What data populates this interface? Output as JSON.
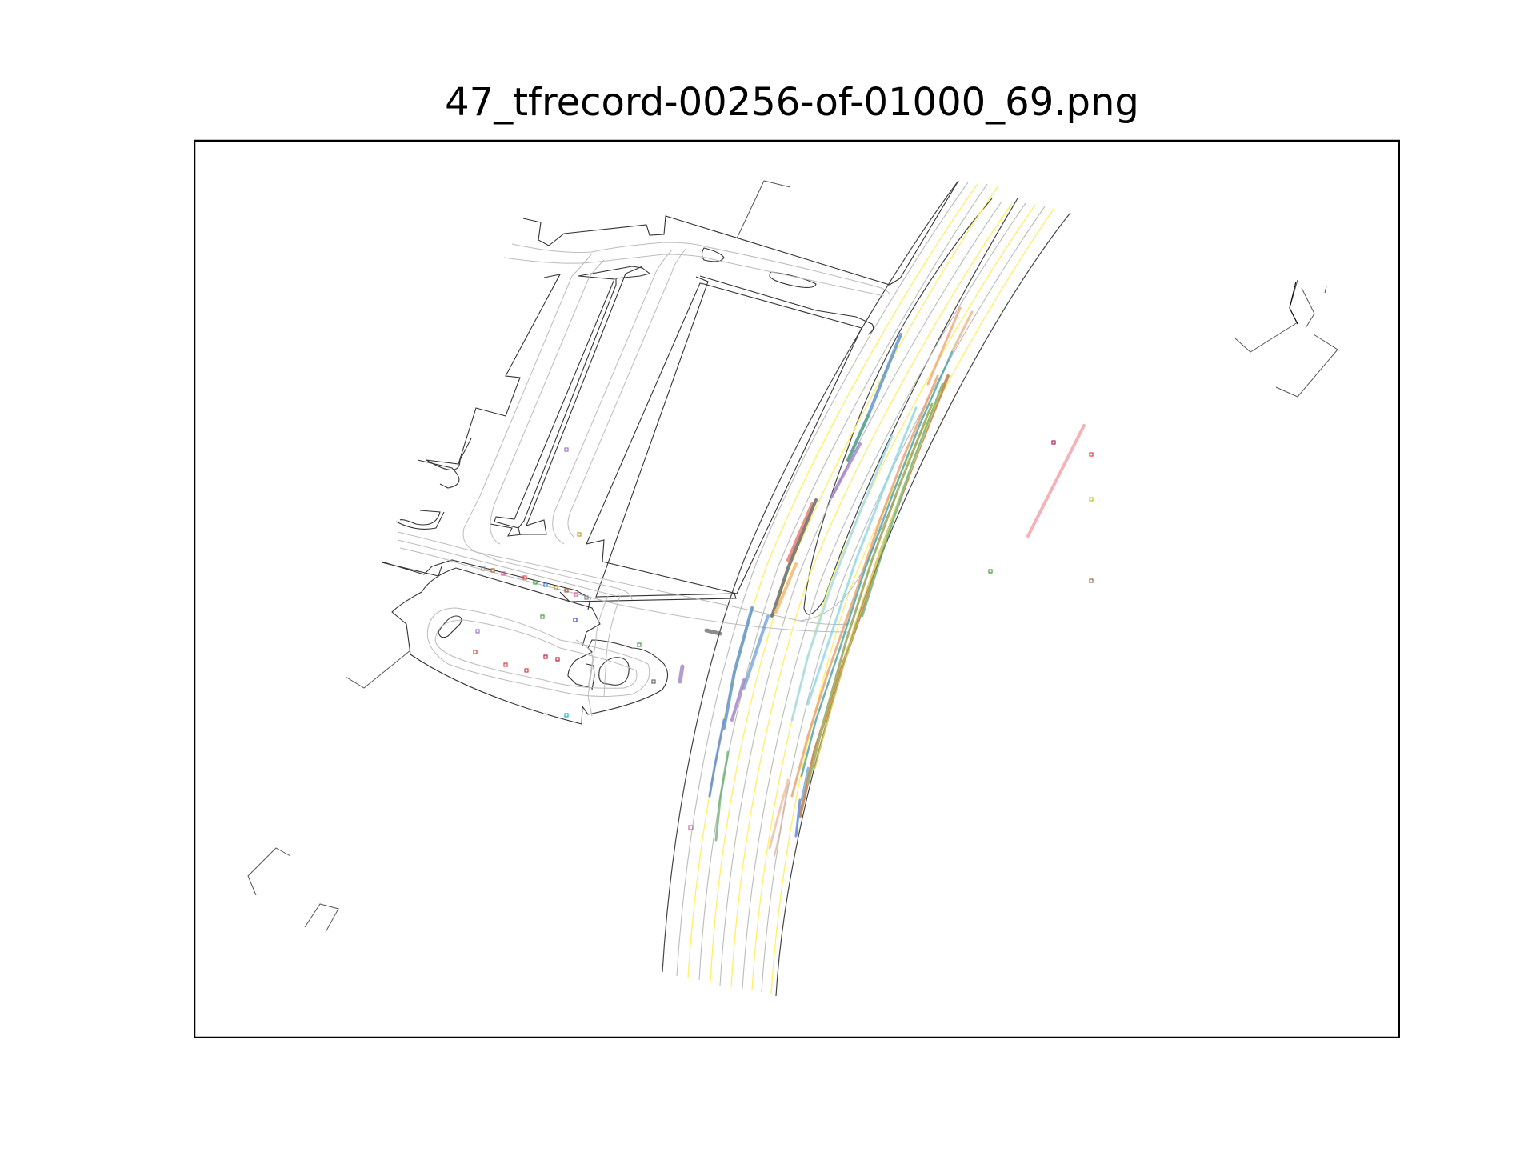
{
  "title": "47_tfrecord-00256-of-01000_69.png",
  "colors": {
    "road_edge": "#333333",
    "lane_line": "#bbbbbb",
    "lane_marking": "#ffee55",
    "frame": "#000000"
  },
  "icons": {
    "agent_marker": "square-marker"
  }
}
